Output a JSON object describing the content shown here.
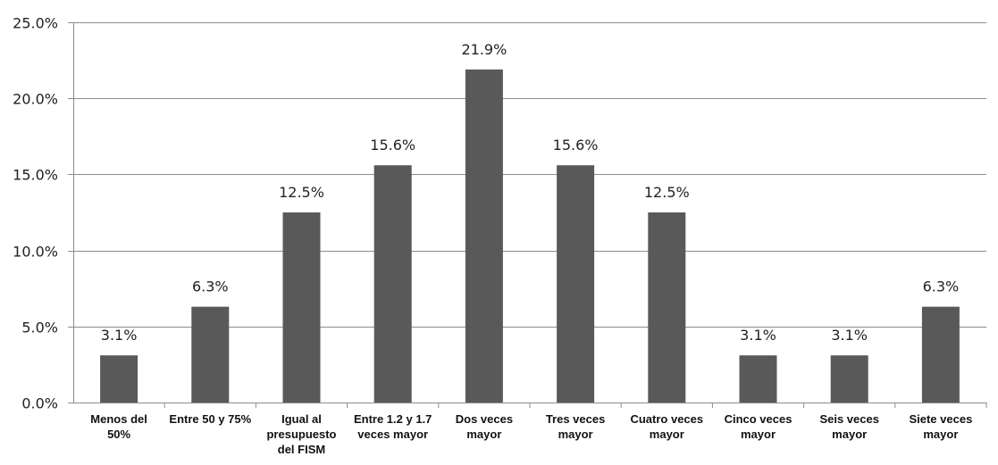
{
  "chart_data": {
    "type": "bar",
    "title": "",
    "xlabel": "",
    "ylabel": "",
    "ylim": [
      0,
      25
    ],
    "y_ticks": [
      "0.0%",
      "5.0%",
      "10.0%",
      "15.0%",
      "20.0%",
      "25.0%"
    ],
    "grid": true,
    "legend": "none",
    "bar_color": "#595959",
    "categories": [
      [
        "Menos del",
        "50%"
      ],
      [
        "Entre 50 y 75%"
      ],
      [
        "Igual al",
        "presupuesto",
        "del FISM"
      ],
      [
        "Entre 1.2 y 1.7",
        "veces mayor"
      ],
      [
        "Dos veces",
        "mayor"
      ],
      [
        "Tres veces",
        "mayor"
      ],
      [
        "Cuatro veces",
        "mayor"
      ],
      [
        "Cinco veces",
        "mayor"
      ],
      [
        "Seis veces",
        "mayor"
      ],
      [
        "Siete veces",
        "mayor"
      ]
    ],
    "values": [
      3.1,
      6.3,
      12.5,
      15.6,
      21.9,
      15.6,
      12.5,
      3.1,
      3.1,
      6.3
    ],
    "data_labels": [
      "3.1%",
      "6.3%",
      "12.5%",
      "15.6%",
      "21.9%",
      "15.6%",
      "12.5%",
      "3.1%",
      "3.1%",
      "6.3%"
    ]
  }
}
